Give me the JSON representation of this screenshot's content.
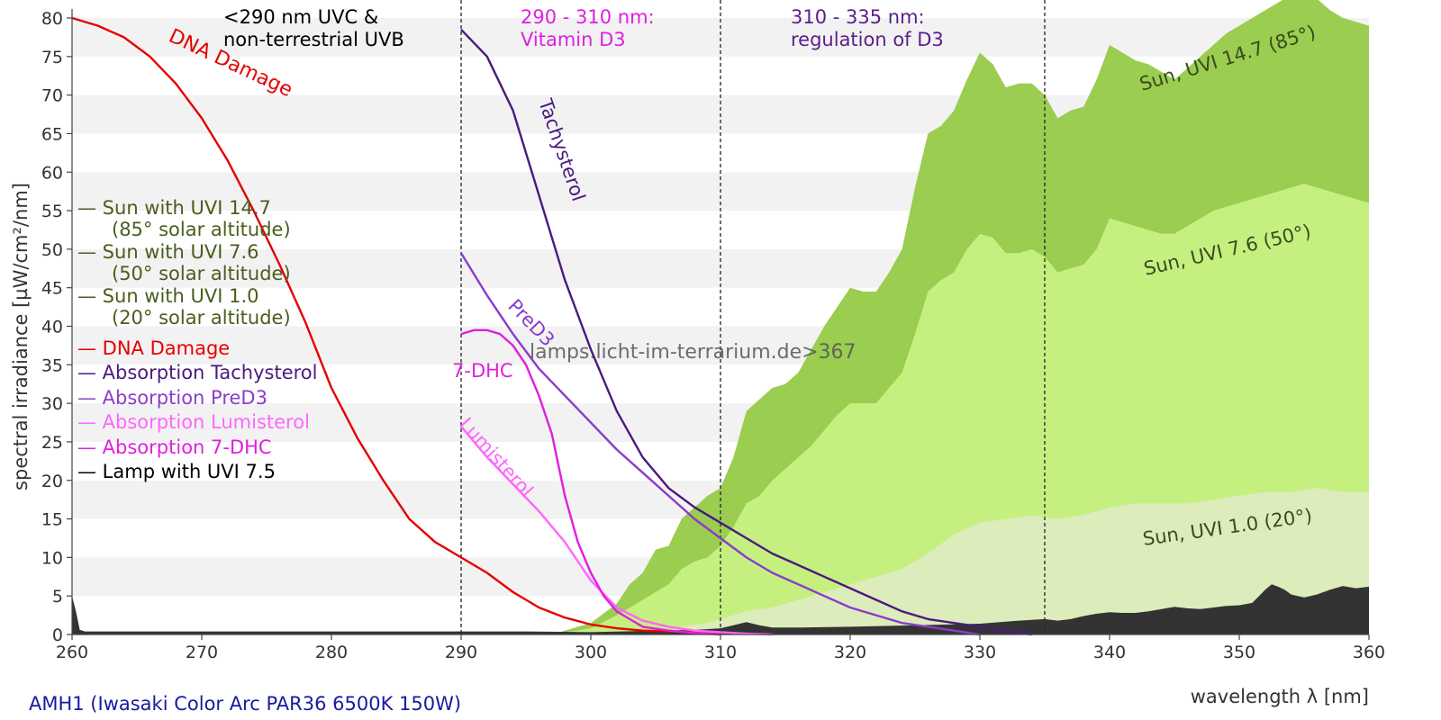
{
  "chart_data": {
    "type": "area",
    "title": "AMH1 (Iwasaki Color Arc PAR36 6500K 150W)",
    "xlabel": "wavelength λ [nm]",
    "ylabel": "spectral irradiance [µW/cm²/nm]",
    "xlim": [
      260,
      360
    ],
    "ylim": [
      0,
      80
    ],
    "x_ticks": [
      "260",
      "270",
      "280",
      "290",
      "300",
      "310",
      "320",
      "330",
      "340",
      "350",
      "360"
    ],
    "y_ticks": [
      "0",
      "5",
      "10",
      "15",
      "20",
      "25",
      "30",
      "35",
      "40",
      "45",
      "50",
      "55",
      "60",
      "65",
      "70",
      "75",
      "80"
    ],
    "watermark": "lamps.licht-im-terrarium.de>367",
    "regions": [
      {
        "boundary": 290,
        "label_line1": "<290 nm UVC &",
        "label_line2": "non-terrestrial UVB",
        "color": "#000000"
      },
      {
        "boundary": 310,
        "label_line1": "290 - 310 nm:",
        "label_line2": "Vitamin D3",
        "color": "#e01ee0"
      },
      {
        "boundary": 335,
        "label_line1": "310 - 335 nm:",
        "label_line2": "regulation of D3",
        "color": "#5a1e8c"
      }
    ],
    "legend": [
      {
        "line1": "— Sun with UVI 14.7",
        "line2": "(85° solar altitude)",
        "color": "#4a5e1e"
      },
      {
        "line1": "— Sun with UVI 7.6",
        "line2": "(50° solar altitude)",
        "color": "#4a5e1e"
      },
      {
        "line1": "— Sun with UVI 1.0",
        "line2": "(20° solar altitude)",
        "color": "#4a5e1e"
      },
      {
        "line1": "— DNA Damage",
        "color": "#e60000"
      },
      {
        "line1": "— Absorption Tachysterol",
        "color": "#4b1a7e"
      },
      {
        "line1": "— Absorption PreD3",
        "color": "#8a3ccc"
      },
      {
        "line1": "— Absorption Lumisterol",
        "color": "#ff66ff"
      },
      {
        "line1": "— Absorption 7-DHC",
        "color": "#e01ee0"
      },
      {
        "line1": "— Lamp with UVI 7.5",
        "color": "#000000"
      }
    ],
    "area_series": [
      {
        "name": "Sun, UVI 14.7 (85°)",
        "color": "#9acd50",
        "x": [
          297,
          300,
          302,
          303,
          304,
          305,
          306,
          307,
          308,
          309,
          310,
          311,
          312,
          313,
          314,
          315,
          316,
          317,
          318,
          319,
          320,
          321,
          322,
          323,
          324,
          325,
          326,
          327,
          328,
          329,
          330,
          331,
          332,
          333,
          334,
          335,
          336,
          337,
          338,
          339,
          340,
          341,
          342,
          343,
          344,
          345,
          346,
          347,
          348,
          349,
          350,
          351,
          352,
          353,
          354,
          355,
          356,
          357,
          358,
          359,
          360
        ],
        "values": [
          0,
          1.5,
          4,
          6.5,
          8,
          11,
          11.5,
          15,
          16.5,
          18,
          19,
          23,
          29,
          30.5,
          32,
          32.5,
          34,
          37,
          40,
          42.5,
          45,
          44.5,
          44.5,
          47,
          50,
          58,
          65,
          66,
          68,
          72,
          75.5,
          74,
          71,
          71.5,
          71.5,
          70,
          67,
          68,
          68.5,
          72,
          76.5,
          75.5,
          74.5,
          74,
          73,
          72,
          73.5,
          75,
          76.5,
          78,
          79,
          80,
          81,
          82,
          83,
          83.5,
          82.5,
          81,
          80,
          79.5,
          79
        ]
      },
      {
        "name": "Sun, UVI 7.6 (50°)",
        "color": "#c5f080",
        "x": [
          297,
          300,
          302,
          304,
          305,
          306,
          307,
          308,
          309,
          310,
          311,
          312,
          313,
          314,
          315,
          316,
          317,
          318,
          319,
          320,
          321,
          322,
          323,
          324,
          325,
          326,
          327,
          328,
          329,
          330,
          331,
          332,
          333,
          334,
          335,
          336,
          337,
          338,
          339,
          340,
          341,
          342,
          343,
          344,
          345,
          346,
          347,
          348,
          349,
          350,
          351,
          352,
          353,
          354,
          355,
          356,
          357,
          358,
          359,
          360
        ],
        "values": [
          0,
          0.8,
          2.5,
          4.5,
          5.5,
          6.5,
          8.5,
          9.5,
          10,
          11.5,
          14,
          17,
          18,
          20,
          21.5,
          23,
          24.5,
          26.5,
          28.5,
          30,
          30,
          30,
          32,
          34,
          39,
          44.5,
          46,
          47,
          50,
          52,
          51.5,
          49.5,
          49.5,
          50,
          49,
          47,
          47.5,
          48,
          50,
          54,
          53.5,
          53,
          52.5,
          52,
          52,
          53,
          54,
          55,
          55.5,
          56,
          56.5,
          57,
          57.5,
          58,
          58.5,
          58,
          57.5,
          57,
          56.5,
          56
        ]
      },
      {
        "name": "Sun, UVI 1.0 (20°)",
        "color": "#ddecbb",
        "x": [
          305,
          307,
          309,
          310,
          312,
          314,
          316,
          318,
          320,
          322,
          324,
          326,
          328,
          330,
          332,
          334,
          336,
          338,
          340,
          342,
          344,
          346,
          348,
          350,
          352,
          354,
          356,
          358,
          360
        ],
        "values": [
          0,
          1,
          1.5,
          2,
          3,
          3.5,
          4.5,
          5.5,
          6.5,
          7.5,
          8.5,
          10.5,
          13,
          14.5,
          15,
          15.5,
          15,
          15.5,
          16.5,
          17,
          17,
          17,
          17.5,
          18,
          18.5,
          18.5,
          19,
          18.5,
          18.5
        ]
      },
      {
        "name": "Lamp with UVI 7.5",
        "color": "#333333",
        "x": [
          260,
          260.3,
          260.6,
          261,
          262,
          270,
          280,
          290,
          295,
          300,
          305,
          308,
          310,
          311,
          312,
          313,
          314,
          316,
          320,
          325,
          330,
          333,
          335,
          336,
          337,
          338,
          339,
          340,
          341,
          342,
          343,
          344,
          345,
          346,
          347,
          348,
          349,
          350,
          351,
          352,
          352.5,
          353,
          353.5,
          354,
          355,
          356,
          357,
          358,
          359,
          360
        ],
        "values": [
          5,
          3,
          0.6,
          0.4,
          0.4,
          0.4,
          0.4,
          0.4,
          0.4,
          0.3,
          0.5,
          0.6,
          0.8,
          1.2,
          1.6,
          1.2,
          0.9,
          0.9,
          1,
          1.2,
          1.4,
          1.8,
          2,
          1.8,
          2,
          2.4,
          2.7,
          2.9,
          2.8,
          2.8,
          3,
          3.3,
          3.6,
          3.4,
          3.3,
          3.5,
          3.7,
          3.8,
          4.1,
          5.8,
          6.5,
          6.2,
          5.8,
          5.2,
          4.8,
          5.2,
          5.8,
          6.3,
          6,
          6.2
        ]
      }
    ],
    "line_series": [
      {
        "name": "DNA Damage",
        "color": "#e60000",
        "x": [
          260,
          262,
          264,
          266,
          268,
          270,
          272,
          274,
          276,
          278,
          280,
          282,
          284,
          286,
          288,
          290,
          292,
          294,
          296,
          298,
          300,
          302,
          304,
          306,
          308,
          310
        ],
        "values": [
          80,
          79,
          77.5,
          75,
          71.5,
          67,
          61.5,
          55,
          48,
          40.5,
          32,
          25.5,
          20,
          15,
          12,
          10,
          8,
          5.5,
          3.5,
          2.2,
          1.3,
          0.8,
          0.5,
          0.4,
          0.3,
          0.3
        ]
      },
      {
        "name": "Absorption Tachysterol",
        "color": "#4b1a7e",
        "x": [
          290,
          292,
          294,
          296,
          298,
          300,
          302,
          304,
          306,
          308,
          310,
          312,
          314,
          316,
          318,
          320,
          322,
          324,
          326,
          328,
          330,
          332,
          334
        ],
        "values": [
          78.5,
          75,
          68,
          57,
          46,
          37,
          29,
          23,
          19,
          16.5,
          14.5,
          12.5,
          10.5,
          9,
          7.5,
          6,
          4.5,
          3,
          2,
          1.5,
          1,
          0.5,
          0
        ]
      },
      {
        "name": "Absorption PreD3",
        "color": "#8a3ccc",
        "x": [
          290,
          292,
          294,
          296,
          298,
          300,
          302,
          304,
          306,
          308,
          310,
          312,
          314,
          316,
          318,
          320,
          322,
          324,
          326,
          328,
          330
        ],
        "values": [
          49.5,
          44,
          39,
          34.5,
          31,
          27.5,
          24,
          21,
          18,
          15,
          12.5,
          10,
          8,
          6.5,
          5,
          3.5,
          2.5,
          1.5,
          1,
          0.5,
          0
        ]
      },
      {
        "name": "Absorption Lumisterol",
        "color": "#ff66ff",
        "x": [
          290,
          292,
          294,
          296,
          298,
          300,
          302,
          304,
          306,
          308,
          310,
          312,
          314
        ],
        "values": [
          27,
          23,
          19.5,
          16,
          12,
          7,
          3.5,
          1.8,
          1,
          0.5,
          0.3,
          0.1,
          0
        ]
      },
      {
        "name": "Absorption 7-DHC",
        "color": "#e01ee0",
        "x": [
          290,
          291,
          292,
          293,
          294,
          295,
          296,
          297,
          298,
          299,
          300,
          301,
          302,
          303,
          304,
          306,
          308,
          310
        ],
        "values": [
          39,
          39.5,
          39.5,
          39,
          37.5,
          35,
          31,
          26,
          18,
          12,
          8,
          5,
          3,
          2,
          1,
          0.5,
          0.2,
          0
        ]
      }
    ],
    "curve_labels": [
      {
        "text": "DNA Damage",
        "color": "#e60000"
      },
      {
        "text": "Tachysterol",
        "color": "#4b1a7e"
      },
      {
        "text": "PreD3",
        "color": "#8a3ccc"
      },
      {
        "text": "7-DHC",
        "color": "#e01ee0"
      },
      {
        "text": "Lumisterol",
        "color": "#ff66ff"
      },
      {
        "text": "Sun, UVI 14.7 (85°)",
        "color": "#3a4a1e"
      },
      {
        "text": "Sun, UVI 7.6 (50°)",
        "color": "#3a4a1e"
      },
      {
        "text": "Sun, UVI 1.0 (20°)",
        "color": "#3a4a1e"
      }
    ]
  }
}
